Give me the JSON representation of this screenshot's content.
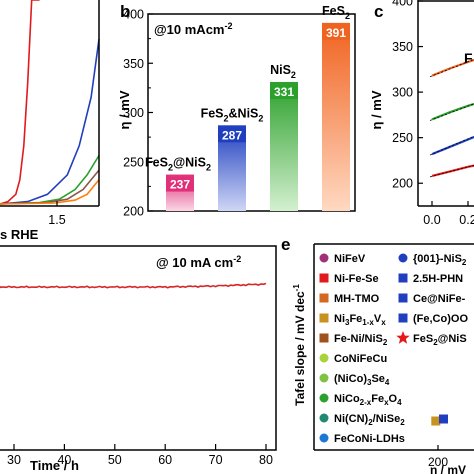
{
  "chart_data": [
    {
      "panel": "a",
      "type": "line",
      "xlabel_fragment": "s RHE",
      "x_ticks": [
        "1.5"
      ],
      "series": [
        {
          "color": "#e31a1c",
          "x": [
            1.38,
            1.4,
            1.42,
            1.43,
            1.44,
            1.45,
            1.46,
            1.47,
            1.475,
            1.48
          ],
          "y": [
            0,
            0.5,
            2,
            5,
            12,
            25,
            50,
            95,
            150,
            250
          ]
        },
        {
          "color": "#1f3fbf",
          "x": [
            1.38,
            1.45,
            1.5,
            1.55,
            1.58,
            1.61,
            1.63
          ],
          "y": [
            0,
            0.5,
            2,
            6,
            12,
            22,
            34
          ]
        },
        {
          "color": "#2ca02c",
          "x": [
            1.38,
            1.48,
            1.53,
            1.57,
            1.6,
            1.63
          ],
          "y": [
            0,
            0.3,
            1,
            3,
            6,
            10
          ]
        },
        {
          "color": "#8c564b",
          "x": [
            1.38,
            1.5,
            1.55,
            1.59,
            1.63
          ],
          "y": [
            0,
            0.3,
            1,
            3,
            7
          ]
        },
        {
          "color": "#ff7f0e",
          "x": [
            1.38,
            1.52,
            1.57,
            1.6,
            1.63
          ],
          "y": [
            0,
            0.2,
            0.8,
            2,
            5
          ]
        }
      ]
    },
    {
      "panel": "b",
      "type": "bar",
      "annotation": "@10 mAcm",
      "annotation_sup": "-2",
      "ylabel": "η / mV",
      "ylim": [
        200,
        400
      ],
      "y_ticks": [
        200,
        250,
        300,
        350,
        400
      ],
      "categories": [
        "FeS2@NiS2",
        "FeS2&NiS2",
        "NiS2",
        "FeS2"
      ],
      "category_labels": [
        {
          "main": "FeS",
          "sub1": "2",
          "mid": "@NiS",
          "sub2": "2"
        },
        {
          "main": "FeS",
          "sub1": "2",
          "mid": "&NiS",
          "sub2": "2"
        },
        {
          "main": "NiS",
          "sub1": "2",
          "mid": "",
          "sub2": ""
        },
        {
          "main": "FeS",
          "sub1": "2",
          "mid": "",
          "sub2": ""
        }
      ],
      "values": [
        237,
        287,
        331,
        391
      ],
      "value_labels": [
        "237",
        "287",
        "331",
        "391"
      ],
      "colors": [
        "#e0307a",
        "#1f3fbf",
        "#2ca02c",
        "#f0621f"
      ]
    },
    {
      "panel": "c",
      "type": "scatter",
      "ylabel": "η / mV",
      "ylim": [
        175,
        400
      ],
      "y_ticks": [
        200,
        250,
        300,
        350,
        400
      ],
      "x_ticks": [
        "0.0",
        "0.2"
      ],
      "edge_text": "F",
      "series": [
        {
          "color": "#f0621f",
          "x": [
            0.0,
            0.1,
            0.2,
            0.3
          ],
          "y": [
            318,
            326,
            333,
            340
          ]
        },
        {
          "color": "#2ca02c",
          "x": [
            0.0,
            0.1,
            0.2,
            0.3
          ],
          "y": [
            270,
            278,
            285,
            291
          ]
        },
        {
          "color": "#1f3fbf",
          "x": [
            0.0,
            0.1,
            0.2,
            0.3
          ],
          "y": [
            232,
            240,
            248,
            256
          ]
        },
        {
          "color": "#e31a1c",
          "x": [
            0.0,
            0.1,
            0.2,
            0.3
          ],
          "y": [
            208,
            213,
            218,
            222
          ]
        }
      ]
    },
    {
      "panel": "d",
      "type": "line",
      "annotation": "@ 10 mA cm",
      "annotation_sup": "-2",
      "xlabel": "Time / h",
      "xlim": [
        20,
        80
      ],
      "x_ticks": [
        30,
        40,
        50,
        60,
        70,
        80
      ],
      "series": [
        {
          "color": "#d62728",
          "x": [
            20,
            30,
            40,
            50,
            60,
            70,
            80
          ],
          "y": [
            0,
            0,
            0,
            0,
            0,
            0.1,
            0.3
          ]
        }
      ]
    },
    {
      "panel": "e",
      "type": "scatter",
      "ylabel": "Tafel slope / mV dec",
      "ylabel_sup": "-1",
      "xlabel": "η / mV",
      "x_ticks": [
        200
      ],
      "legend": {
        "left": [
          {
            "label": "NiFeV",
            "color": "#a0307a",
            "marker": "circle"
          },
          {
            "label": "Ni-Fe-Se",
            "color": "#e31a1c",
            "marker": "square"
          },
          {
            "label": "MH-TMO",
            "color": "#d2691e",
            "marker": "square"
          },
          {
            "label": "Ni3Fe1-xVx",
            "parts": [
              [
                "Ni",
                ""
              ],
              [
                "3",
                "sub"
              ],
              [
                "Fe",
                ""
              ],
              [
                "1-x",
                "sub"
              ],
              [
                "V",
                ""
              ],
              [
                "x",
                "sub"
              ]
            ],
            "color": "#c8921e",
            "marker": "square"
          },
          {
            "label": "Fe-Ni/NiS2",
            "parts": [
              [
                "Fe-Ni/NiS",
                ""
              ],
              [
                "2",
                "sub"
              ]
            ],
            "color": "#a0521e",
            "marker": "square"
          },
          {
            "label": "CoNiFeCu",
            "color": "#a8d43a",
            "marker": "circle"
          },
          {
            "label": "(NiCo)3Se4",
            "parts": [
              [
                "(NiCo)",
                ""
              ],
              [
                "3",
                "sub"
              ],
              [
                "Se",
                ""
              ],
              [
                "4",
                "sub"
              ]
            ],
            "color": "#7fc241",
            "marker": "circle"
          },
          {
            "label": "NiCo2-xFexO4",
            "parts": [
              [
                "NiCo",
                ""
              ],
              [
                "2-x",
                "sub"
              ],
              [
                "Fe",
                ""
              ],
              [
                "x",
                "sub"
              ],
              [
                "O",
                ""
              ],
              [
                "4",
                "sub"
              ]
            ],
            "color": "#2ca02c",
            "marker": "circle"
          },
          {
            "label": "Ni(CN)2/NiSe2",
            "parts": [
              [
                "Ni(CN)",
                ""
              ],
              [
                "2",
                "sub"
              ],
              [
                "/NiSe",
                ""
              ],
              [
                "2",
                "sub"
              ]
            ],
            "color": "#1f8a6f",
            "marker": "circle"
          },
          {
            "label": "FeCoNi-LDHs",
            "color": "#1f77d4",
            "marker": "circle"
          }
        ],
        "right": [
          {
            "label": "{001}-NiS2",
            "parts": [
              [
                "{001}-NiS",
                ""
              ],
              [
                "2",
                "sub"
              ]
            ],
            "color": "#1f3fbf",
            "marker": "circle"
          },
          {
            "label": "2.5H-PHN",
            "color": "#1f3fbf",
            "marker": "square"
          },
          {
            "label": "Ce@NiFe-",
            "color": "#1f3fbf",
            "marker": "square"
          },
          {
            "label": "(Fe,Co)OO",
            "color": "#1f3fbf",
            "marker": "square"
          },
          {
            "label": "FeS2@NiS",
            "parts": [
              [
                "FeS",
                ""
              ],
              [
                "2",
                "sub"
              ],
              [
                "@NiS",
                ""
              ]
            ],
            "color": "#e31a1c",
            "marker": "star"
          }
        ]
      },
      "points": [
        {
          "x": 198,
          "y": 39,
          "color": "#c8921e",
          "marker": "square"
        },
        {
          "x": 205,
          "y": 40,
          "color": "#1f3fbf",
          "marker": "square"
        }
      ]
    }
  ],
  "panel_letters": {
    "b": "b",
    "c": "c",
    "e": "e"
  },
  "rhe_label": "s RHE",
  "xtick_a": "1.5"
}
